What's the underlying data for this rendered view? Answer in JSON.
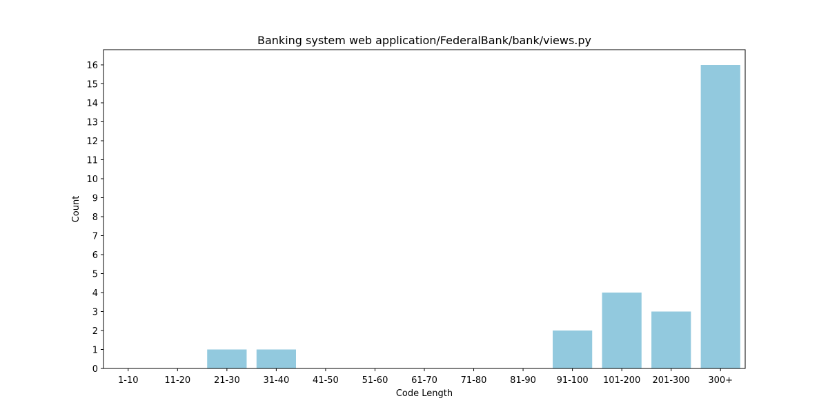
{
  "chart_data": {
    "type": "bar",
    "title": "Banking system web application/FederalBank/bank/views.py",
    "xlabel": "Code Length",
    "ylabel": "Count",
    "categories": [
      "1-10",
      "11-20",
      "21-30",
      "31-40",
      "41-50",
      "51-60",
      "61-70",
      "71-80",
      "81-90",
      "91-100",
      "101-200",
      "201-300",
      "300+"
    ],
    "values": [
      0,
      0,
      1,
      1,
      0,
      0,
      0,
      0,
      0,
      2,
      4,
      3,
      16
    ],
    "ylim": [
      0,
      16.8
    ],
    "yticks": [
      0,
      1,
      2,
      3,
      4,
      5,
      6,
      7,
      8,
      9,
      10,
      11,
      12,
      13,
      14,
      15,
      16
    ],
    "grid": false,
    "bar_color": "#92c9de"
  }
}
